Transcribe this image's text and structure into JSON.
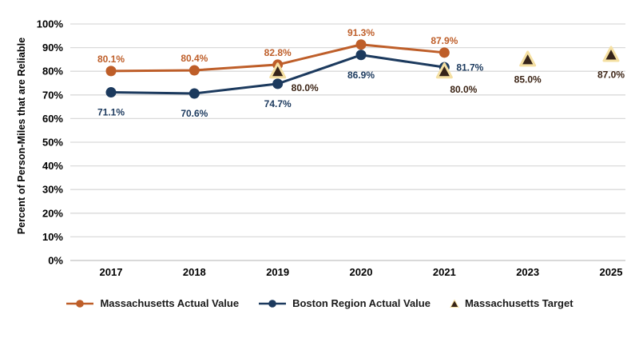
{
  "chart_data": {
    "type": "line",
    "title": "",
    "xlabel": "",
    "ylabel": "Percent of Person-Miles that are Reliable",
    "categories": [
      "2017",
      "2018",
      "2019",
      "2020",
      "2021",
      "2023",
      "2025"
    ],
    "ylim": [
      0,
      100
    ],
    "ytick_step": 10,
    "ytick_suffix": "%",
    "grid": "horizontal",
    "legend_position": "bottom",
    "colors": {
      "massachusetts_actual": "#BE5E29",
      "boston_region_actual": "#1C3A5E",
      "target_fill": "#36241A",
      "target_outline": "#F5E0A3",
      "target_label": "#3C2415",
      "gridline": "#DADADA",
      "baseline": "#C2C2C2",
      "axis_text": "#000000"
    },
    "series": [
      {
        "name": "Massachusetts Actual Value",
        "marker": "circle",
        "line": true,
        "color": "#BE5E29",
        "points": [
          {
            "x": "2017",
            "y": 80.1,
            "label": "80.1%",
            "label_pos": "above"
          },
          {
            "x": "2018",
            "y": 80.4,
            "label": "80.4%",
            "label_pos": "above"
          },
          {
            "x": "2019",
            "y": 82.8,
            "label": "82.8%",
            "label_pos": "above"
          },
          {
            "x": "2020",
            "y": 91.3,
            "label": "91.3%",
            "label_pos": "above"
          },
          {
            "x": "2021",
            "y": 87.9,
            "label": "87.9%",
            "label_pos": "above"
          }
        ]
      },
      {
        "name": "Boston Region Actual Value",
        "marker": "circle",
        "line": true,
        "color": "#1C3A5E",
        "points": [
          {
            "x": "2017",
            "y": 71.1,
            "label": "71.1%",
            "label_pos": "below"
          },
          {
            "x": "2018",
            "y": 70.6,
            "label": "70.6%",
            "label_pos": "below"
          },
          {
            "x": "2019",
            "y": 74.7,
            "label": "74.7%",
            "label_pos": "below"
          },
          {
            "x": "2020",
            "y": 86.9,
            "label": "86.9%",
            "label_pos": "below"
          },
          {
            "x": "2021",
            "y": 81.7,
            "label": "81.7%",
            "label_pos": "right"
          }
        ]
      },
      {
        "name": "Massachusetts Target",
        "marker": "triangle",
        "line": false,
        "color": "#36241A",
        "marker_outline": "#F5E0A3",
        "label_color": "#3C2415",
        "points": [
          {
            "x": "2019",
            "y": 80.0,
            "label": "80.0%",
            "label_pos": "right-below"
          },
          {
            "x": "2021",
            "y": 80.0,
            "label": "80.0%",
            "label_pos": "below-right"
          },
          {
            "x": "2023",
            "y": 85.0,
            "label": "85.0%",
            "label_pos": "below"
          },
          {
            "x": "2025",
            "y": 87.0,
            "label": "87.0%",
            "label_pos": "below"
          }
        ]
      }
    ]
  }
}
